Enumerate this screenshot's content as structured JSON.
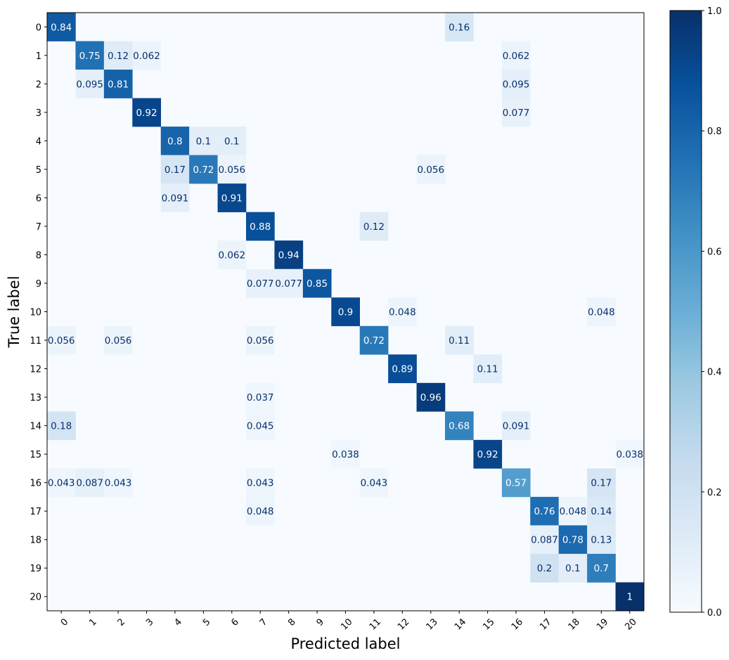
{
  "chart_data": {
    "type": "heatmap",
    "title": "",
    "xlabel": "Predicted label",
    "ylabel": "True label",
    "x_categories": [
      "0",
      "1",
      "2",
      "3",
      "4",
      "5",
      "6",
      "7",
      "8",
      "9",
      "10",
      "11",
      "12",
      "13",
      "14",
      "15",
      "16",
      "17",
      "18",
      "19",
      "20"
    ],
    "y_categories": [
      "0",
      "1",
      "2",
      "3",
      "4",
      "5",
      "6",
      "7",
      "8",
      "9",
      "10",
      "11",
      "12",
      "13",
      "14",
      "15",
      "16",
      "17",
      "18",
      "19",
      "20"
    ],
    "colormap": "Blues",
    "colorbar": {
      "range": [
        0.0,
        1.0
      ],
      "ticks": [
        "0.0",
        "0.2",
        "0.4",
        "0.6",
        "0.8",
        "1.0"
      ]
    },
    "cells": [
      {
        "row": 0,
        "col": 0,
        "value": 0.84,
        "label": "0.84"
      },
      {
        "row": 0,
        "col": 14,
        "value": 0.16,
        "label": "0.16"
      },
      {
        "row": 1,
        "col": 1,
        "value": 0.75,
        "label": "0.75"
      },
      {
        "row": 1,
        "col": 2,
        "value": 0.12,
        "label": "0.12"
      },
      {
        "row": 1,
        "col": 3,
        "value": 0.062,
        "label": "0.062"
      },
      {
        "row": 1,
        "col": 16,
        "value": 0.062,
        "label": "0.062"
      },
      {
        "row": 2,
        "col": 1,
        "value": 0.095,
        "label": "0.095"
      },
      {
        "row": 2,
        "col": 2,
        "value": 0.81,
        "label": "0.81"
      },
      {
        "row": 2,
        "col": 16,
        "value": 0.095,
        "label": "0.095"
      },
      {
        "row": 3,
        "col": 3,
        "value": 0.92,
        "label": "0.92"
      },
      {
        "row": 3,
        "col": 16,
        "value": 0.077,
        "label": "0.077"
      },
      {
        "row": 4,
        "col": 4,
        "value": 0.8,
        "label": "0.8"
      },
      {
        "row": 4,
        "col": 5,
        "value": 0.1,
        "label": "0.1"
      },
      {
        "row": 4,
        "col": 6,
        "value": 0.1,
        "label": "0.1"
      },
      {
        "row": 5,
        "col": 4,
        "value": 0.17,
        "label": "0.17"
      },
      {
        "row": 5,
        "col": 5,
        "value": 0.72,
        "label": "0.72"
      },
      {
        "row": 5,
        "col": 6,
        "value": 0.056,
        "label": "0.056"
      },
      {
        "row": 5,
        "col": 13,
        "value": 0.056,
        "label": "0.056"
      },
      {
        "row": 6,
        "col": 4,
        "value": 0.091,
        "label": "0.091"
      },
      {
        "row": 6,
        "col": 6,
        "value": 0.91,
        "label": "0.91"
      },
      {
        "row": 7,
        "col": 7,
        "value": 0.88,
        "label": "0.88"
      },
      {
        "row": 7,
        "col": 11,
        "value": 0.12,
        "label": "0.12"
      },
      {
        "row": 8,
        "col": 6,
        "value": 0.062,
        "label": "0.062"
      },
      {
        "row": 8,
        "col": 8,
        "value": 0.94,
        "label": "0.94"
      },
      {
        "row": 9,
        "col": 7,
        "value": 0.077,
        "label": "0.077"
      },
      {
        "row": 9,
        "col": 8,
        "value": 0.077,
        "label": "0.077"
      },
      {
        "row": 9,
        "col": 9,
        "value": 0.85,
        "label": "0.85"
      },
      {
        "row": 10,
        "col": 10,
        "value": 0.9,
        "label": "0.9"
      },
      {
        "row": 10,
        "col": 12,
        "value": 0.048,
        "label": "0.048"
      },
      {
        "row": 10,
        "col": 19,
        "value": 0.048,
        "label": "0.048"
      },
      {
        "row": 11,
        "col": 0,
        "value": 0.056,
        "label": "0.056"
      },
      {
        "row": 11,
        "col": 2,
        "value": 0.056,
        "label": "0.056"
      },
      {
        "row": 11,
        "col": 7,
        "value": 0.056,
        "label": "0.056"
      },
      {
        "row": 11,
        "col": 11,
        "value": 0.72,
        "label": "0.72"
      },
      {
        "row": 11,
        "col": 14,
        "value": 0.11,
        "label": "0.11"
      },
      {
        "row": 12,
        "col": 12,
        "value": 0.89,
        "label": "0.89"
      },
      {
        "row": 12,
        "col": 15,
        "value": 0.11,
        "label": "0.11"
      },
      {
        "row": 13,
        "col": 7,
        "value": 0.037,
        "label": "0.037"
      },
      {
        "row": 13,
        "col": 13,
        "value": 0.96,
        "label": "0.96"
      },
      {
        "row": 14,
        "col": 0,
        "value": 0.18,
        "label": "0.18"
      },
      {
        "row": 14,
        "col": 7,
        "value": 0.045,
        "label": "0.045"
      },
      {
        "row": 14,
        "col": 14,
        "value": 0.68,
        "label": "0.68"
      },
      {
        "row": 14,
        "col": 16,
        "value": 0.091,
        "label": "0.091"
      },
      {
        "row": 15,
        "col": 10,
        "value": 0.038,
        "label": "0.038"
      },
      {
        "row": 15,
        "col": 15,
        "value": 0.92,
        "label": "0.92"
      },
      {
        "row": 15,
        "col": 20,
        "value": 0.038,
        "label": "0.038"
      },
      {
        "row": 16,
        "col": 0,
        "value": 0.043,
        "label": "0.043"
      },
      {
        "row": 16,
        "col": 1,
        "value": 0.087,
        "label": "0.087"
      },
      {
        "row": 16,
        "col": 2,
        "value": 0.043,
        "label": "0.043"
      },
      {
        "row": 16,
        "col": 7,
        "value": 0.043,
        "label": "0.043"
      },
      {
        "row": 16,
        "col": 11,
        "value": 0.043,
        "label": "0.043"
      },
      {
        "row": 16,
        "col": 16,
        "value": 0.57,
        "label": "0.57"
      },
      {
        "row": 16,
        "col": 19,
        "value": 0.17,
        "label": "0.17"
      },
      {
        "row": 17,
        "col": 7,
        "value": 0.048,
        "label": "0.048"
      },
      {
        "row": 17,
        "col": 17,
        "value": 0.76,
        "label": "0.76"
      },
      {
        "row": 17,
        "col": 18,
        "value": 0.048,
        "label": "0.048"
      },
      {
        "row": 17,
        "col": 19,
        "value": 0.14,
        "label": "0.14"
      },
      {
        "row": 18,
        "col": 17,
        "value": 0.087,
        "label": "0.087"
      },
      {
        "row": 18,
        "col": 18,
        "value": 0.78,
        "label": "0.78"
      },
      {
        "row": 18,
        "col": 19,
        "value": 0.13,
        "label": "0.13"
      },
      {
        "row": 19,
        "col": 17,
        "value": 0.2,
        "label": "0.2"
      },
      {
        "row": 19,
        "col": 18,
        "value": 0.1,
        "label": "0.1"
      },
      {
        "row": 19,
        "col": 19,
        "value": 0.7,
        "label": "0.7"
      },
      {
        "row": 20,
        "col": 20,
        "value": 1.0,
        "label": "1"
      }
    ]
  }
}
